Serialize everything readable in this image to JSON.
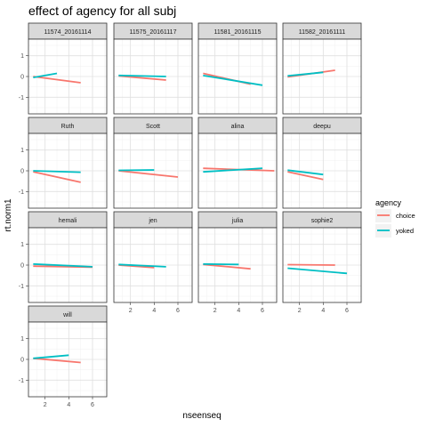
{
  "chart_data": {
    "type": "line",
    "title": "effect of agency for all subj",
    "xlabel": "nseenseq",
    "ylabel": "rt.norm1",
    "xlim": [
      0.6,
      7.2
    ],
    "ylim": [
      -1.8,
      1.8
    ],
    "x_ticks": [
      2,
      4,
      6
    ],
    "y_ticks": [
      -1,
      0,
      1
    ],
    "grid": true,
    "legend": {
      "title": "agency",
      "position": "right",
      "entries": [
        {
          "name": "choice",
          "color": "#F8766D"
        },
        {
          "name": "yoked",
          "color": "#00BFC4"
        }
      ]
    },
    "facets": [
      {
        "label": "11574_20161114",
        "choice": [
          [
            1,
            0.0
          ],
          [
            5,
            -0.3
          ]
        ],
        "yoked": [
          [
            1,
            -0.05
          ],
          [
            3,
            0.15
          ]
        ]
      },
      {
        "label": "11575_20161117",
        "choice": [
          [
            1,
            0.03
          ],
          [
            5,
            -0.17
          ]
        ],
        "yoked": [
          [
            1,
            0.05
          ],
          [
            5,
            0.0
          ]
        ]
      },
      {
        "label": "11581_20161115",
        "choice": [
          [
            1,
            0.15
          ],
          [
            5,
            -0.37
          ]
        ],
        "yoked": [
          [
            1,
            0.05
          ],
          [
            6,
            -0.42
          ]
        ]
      },
      {
        "label": "11582_20161111",
        "choice": [
          [
            1,
            -0.02
          ],
          [
            5,
            0.3
          ]
        ],
        "yoked": [
          [
            1,
            0.03
          ],
          [
            4,
            0.2
          ]
        ]
      },
      {
        "label": "Ruth",
        "choice": [
          [
            1,
            -0.05
          ],
          [
            5,
            -0.55
          ]
        ],
        "yoked": [
          [
            1,
            0.0
          ],
          [
            5,
            -0.07
          ]
        ]
      },
      {
        "label": "Scott",
        "choice": [
          [
            1,
            0.0
          ],
          [
            6,
            -0.3
          ]
        ],
        "yoked": [
          [
            1,
            0.02
          ],
          [
            4,
            0.04
          ]
        ]
      },
      {
        "label": "alina",
        "choice": [
          [
            1,
            0.12
          ],
          [
            7,
            0.0
          ]
        ],
        "yoked": [
          [
            1,
            -0.05
          ],
          [
            6,
            0.12
          ]
        ]
      },
      {
        "label": "deepu",
        "choice": [
          [
            1,
            -0.05
          ],
          [
            4,
            -0.42
          ]
        ],
        "yoked": [
          [
            1,
            0.03
          ],
          [
            4,
            -0.18
          ]
        ]
      },
      {
        "label": "hemali",
        "choice": [
          [
            1,
            -0.05
          ],
          [
            6,
            -0.1
          ]
        ],
        "yoked": [
          [
            1,
            0.05
          ],
          [
            6,
            -0.08
          ]
        ]
      },
      {
        "label": "jen",
        "choice": [
          [
            1,
            0.0
          ],
          [
            4,
            -0.12
          ]
        ],
        "yoked": [
          [
            1,
            0.03
          ],
          [
            5,
            -0.08
          ]
        ]
      },
      {
        "label": "julia",
        "choice": [
          [
            1,
            0.03
          ],
          [
            5,
            -0.18
          ]
        ],
        "yoked": [
          [
            1,
            0.05
          ],
          [
            4,
            0.03
          ]
        ]
      },
      {
        "label": "sophie2",
        "choice": [
          [
            1,
            0.02
          ],
          [
            5,
            0.0
          ]
        ],
        "yoked": [
          [
            1,
            -0.15
          ],
          [
            6,
            -0.4
          ]
        ]
      },
      {
        "label": "will",
        "choice": [
          [
            1,
            0.05
          ],
          [
            5,
            -0.15
          ]
        ],
        "yoked": [
          [
            1,
            0.05
          ],
          [
            4,
            0.2
          ]
        ]
      }
    ]
  }
}
